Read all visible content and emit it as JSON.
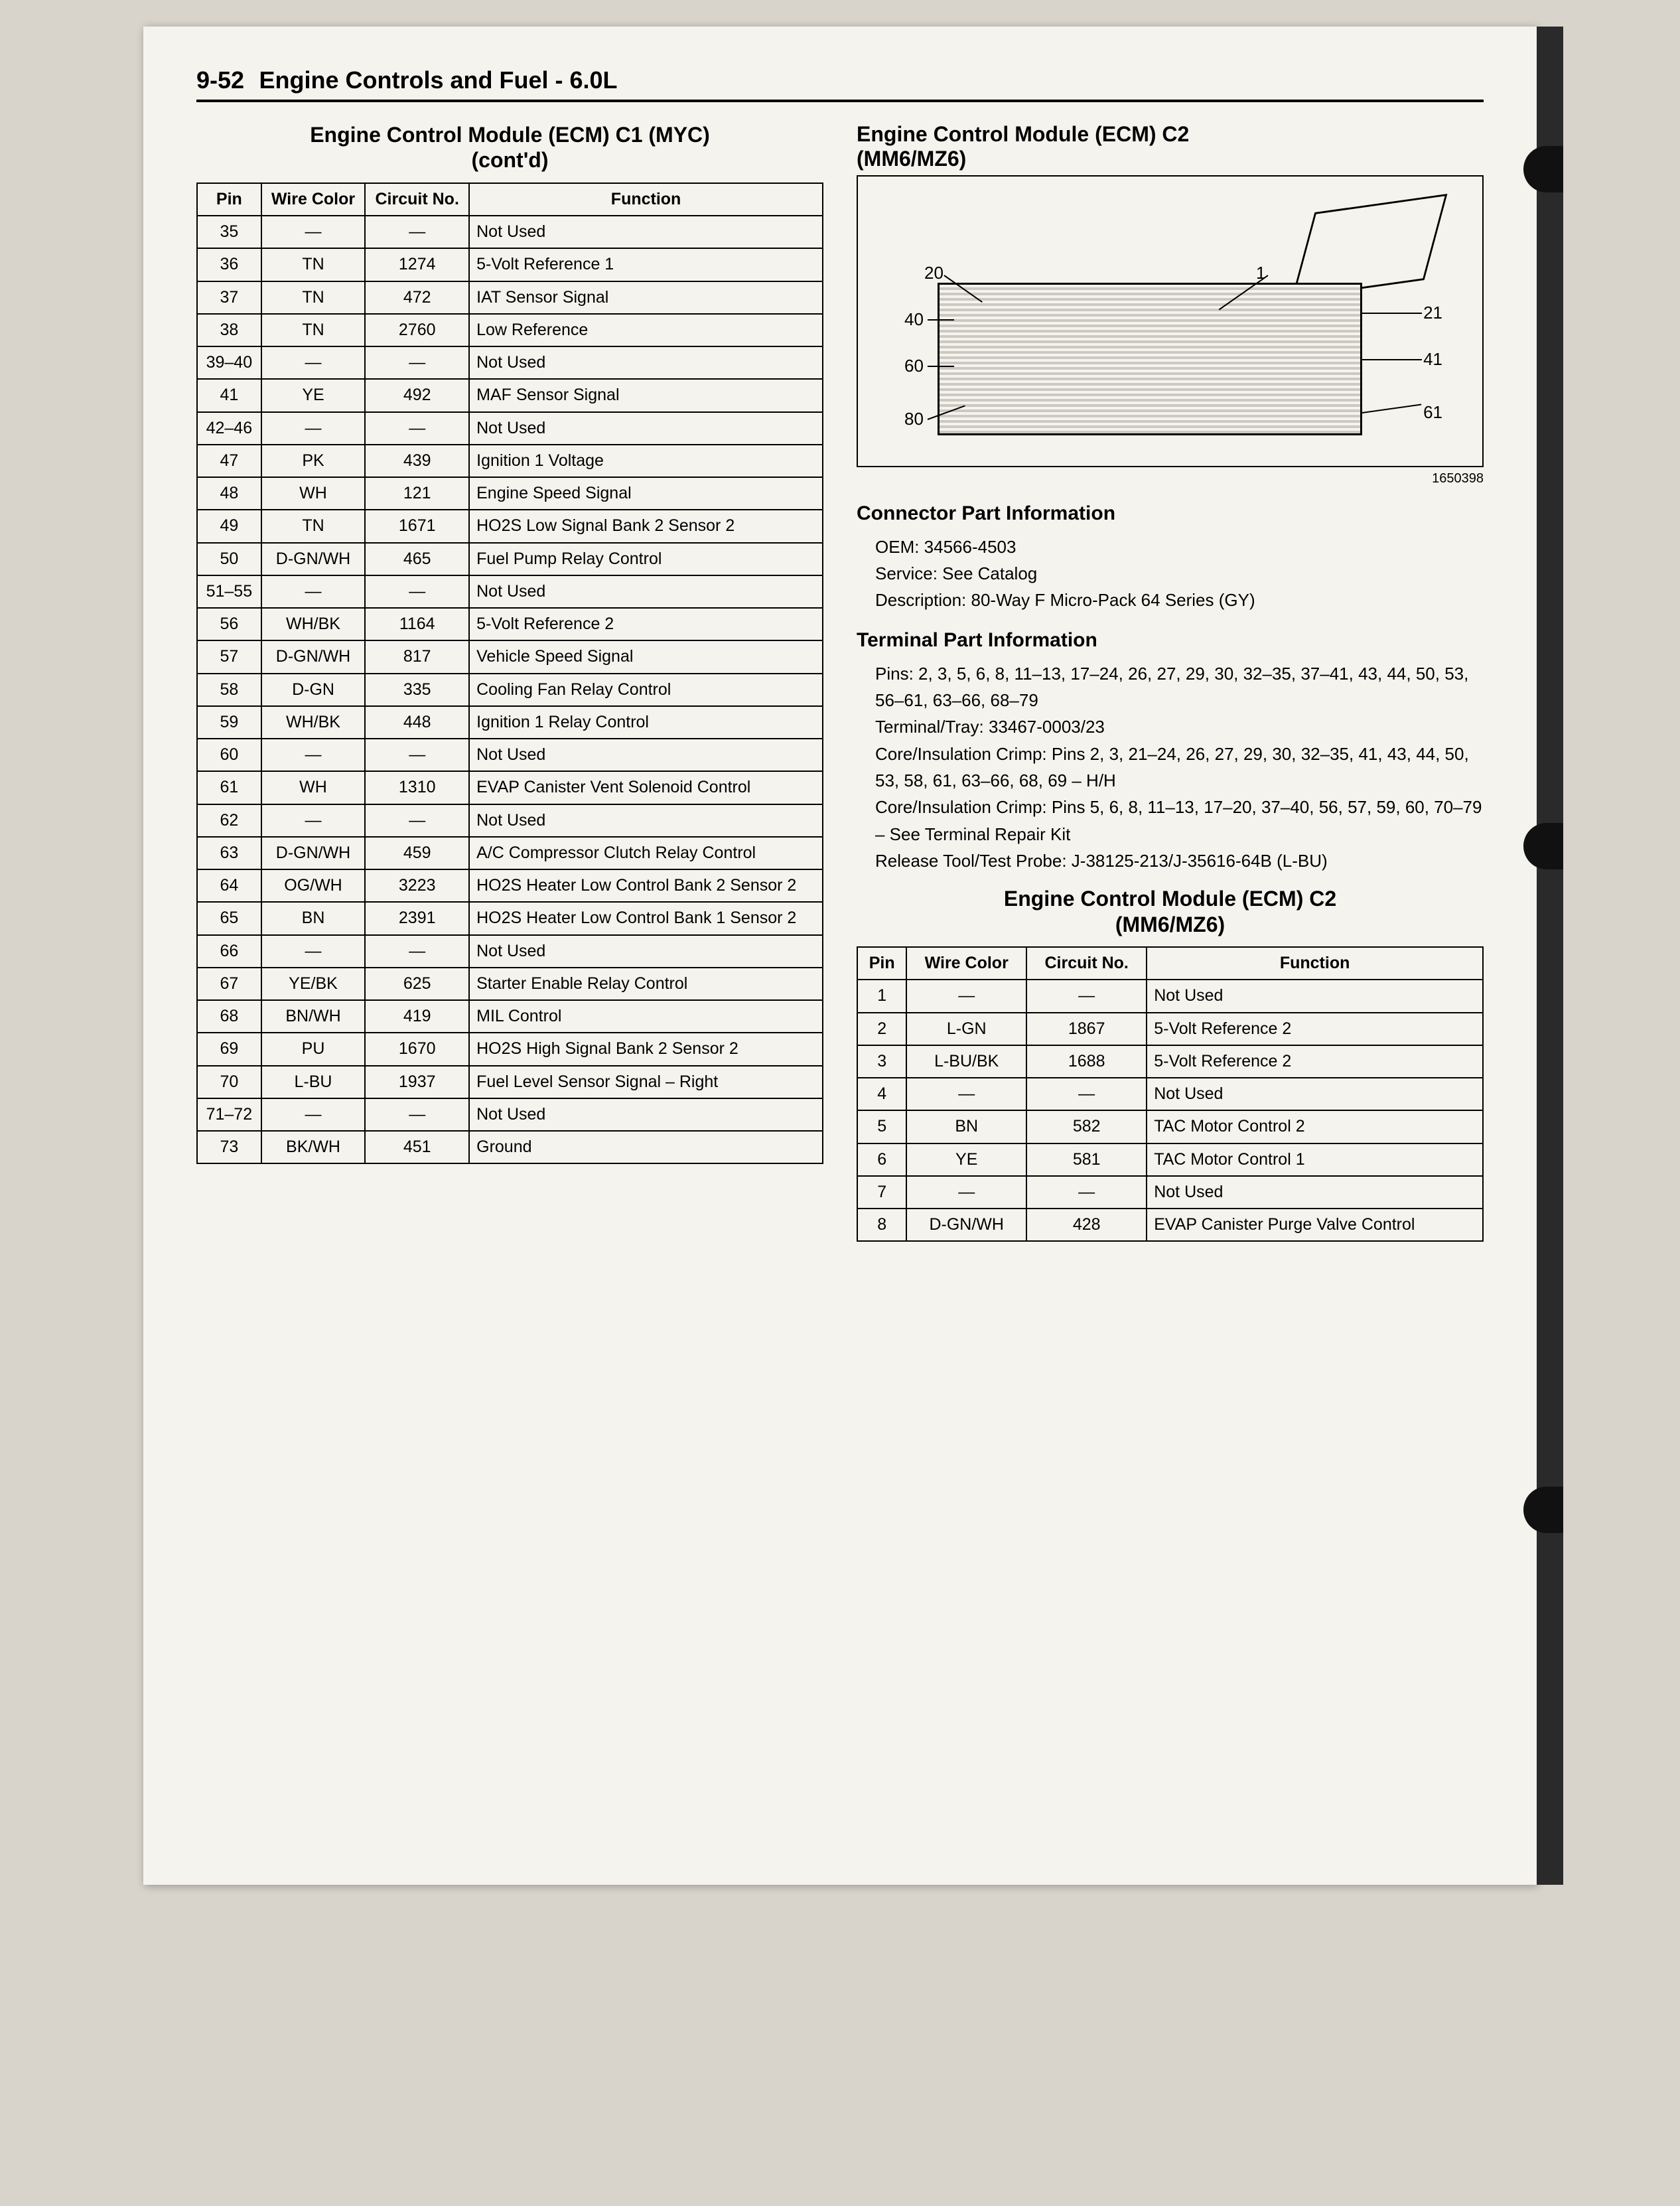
{
  "page": {
    "number": "9-52",
    "section": "Engine Controls and Fuel - 6.0L"
  },
  "left": {
    "title_line1": "Engine Control Module (ECM) C1 (MYC)",
    "title_line2": "(cont'd)",
    "headers": {
      "pin": "Pin",
      "wire": "Wire Color",
      "circuit": "Circuit No.",
      "func": "Function"
    },
    "rows": [
      {
        "pin": "35",
        "wire": "—",
        "circuit": "—",
        "func": "Not Used"
      },
      {
        "pin": "36",
        "wire": "TN",
        "circuit": "1274",
        "func": "5-Volt Reference 1"
      },
      {
        "pin": "37",
        "wire": "TN",
        "circuit": "472",
        "func": "IAT Sensor Signal"
      },
      {
        "pin": "38",
        "wire": "TN",
        "circuit": "2760",
        "func": "Low Reference"
      },
      {
        "pin": "39–40",
        "wire": "—",
        "circuit": "—",
        "func": "Not Used"
      },
      {
        "pin": "41",
        "wire": "YE",
        "circuit": "492",
        "func": "MAF Sensor Signal"
      },
      {
        "pin": "42–46",
        "wire": "—",
        "circuit": "—",
        "func": "Not Used"
      },
      {
        "pin": "47",
        "wire": "PK",
        "circuit": "439",
        "func": "Ignition 1 Voltage"
      },
      {
        "pin": "48",
        "wire": "WH",
        "circuit": "121",
        "func": "Engine Speed Signal"
      },
      {
        "pin": "49",
        "wire": "TN",
        "circuit": "1671",
        "func": "HO2S Low Signal Bank 2 Sensor 2"
      },
      {
        "pin": "50",
        "wire": "D-GN/WH",
        "circuit": "465",
        "func": "Fuel Pump Relay Control"
      },
      {
        "pin": "51–55",
        "wire": "—",
        "circuit": "—",
        "func": "Not Used"
      },
      {
        "pin": "56",
        "wire": "WH/BK",
        "circuit": "1164",
        "func": "5-Volt Reference 2"
      },
      {
        "pin": "57",
        "wire": "D-GN/WH",
        "circuit": "817",
        "func": "Vehicle Speed Signal"
      },
      {
        "pin": "58",
        "wire": "D-GN",
        "circuit": "335",
        "func": "Cooling Fan Relay Control"
      },
      {
        "pin": "59",
        "wire": "WH/BK",
        "circuit": "448",
        "func": "Ignition 1 Relay Control"
      },
      {
        "pin": "60",
        "wire": "—",
        "circuit": "—",
        "func": "Not Used"
      },
      {
        "pin": "61",
        "wire": "WH",
        "circuit": "1310",
        "func": "EVAP Canister Vent Solenoid Control"
      },
      {
        "pin": "62",
        "wire": "—",
        "circuit": "—",
        "func": "Not Used"
      },
      {
        "pin": "63",
        "wire": "D-GN/WH",
        "circuit": "459",
        "func": "A/C Compressor Clutch Relay Control"
      },
      {
        "pin": "64",
        "wire": "OG/WH",
        "circuit": "3223",
        "func": "HO2S Heater Low Control Bank 2 Sensor 2"
      },
      {
        "pin": "65",
        "wire": "BN",
        "circuit": "2391",
        "func": "HO2S Heater Low Control Bank 1 Sensor 2"
      },
      {
        "pin": "66",
        "wire": "—",
        "circuit": "—",
        "func": "Not Used"
      },
      {
        "pin": "67",
        "wire": "YE/BK",
        "circuit": "625",
        "func": "Starter Enable Relay Control"
      },
      {
        "pin": "68",
        "wire": "BN/WH",
        "circuit": "419",
        "func": "MIL Control"
      },
      {
        "pin": "69",
        "wire": "PU",
        "circuit": "1670",
        "func": "HO2S High Signal Bank 2 Sensor 2"
      },
      {
        "pin": "70",
        "wire": "L-BU",
        "circuit": "1937",
        "func": "Fuel Level Sensor Signal – Right"
      },
      {
        "pin": "71–72",
        "wire": "—",
        "circuit": "—",
        "func": "Not Used"
      },
      {
        "pin": "73",
        "wire": "BK/WH",
        "circuit": "451",
        "func": "Ground"
      }
    ]
  },
  "right": {
    "title_line1": "Engine Control Module (ECM) C2",
    "title_line2": "(MM6/MZ6)",
    "diagram": {
      "labels": {
        "tl": "20",
        "tr": "1",
        "ml": "40",
        "mr": "21",
        "bl": "60",
        "br": "41",
        "bbl": "80",
        "bbr": "61"
      },
      "figure_id": "1650398"
    },
    "conn_info": {
      "heading": "Connector Part Information",
      "oem": "OEM: 34566-4503",
      "service": "Service: See Catalog",
      "desc": "Description: 80-Way F Micro-Pack 64 Series (GY)"
    },
    "term_info": {
      "heading": "Terminal Part Information",
      "pins": "Pins: 2, 3, 5, 6, 8, 11–13, 17–24, 26, 27, 29, 30, 32–35, 37–41, 43, 44, 50, 53, 56–61, 63–66, 68–79",
      "tray": "Terminal/Tray: 33467-0003/23",
      "crimp1": "Core/Insulation Crimp: Pins 2, 3, 21–24, 26, 27, 29, 30, 32–35, 41, 43, 44, 50, 53, 58, 61, 63–66, 68, 69 – H/H",
      "crimp2": "Core/Insulation Crimp: Pins 5, 6, 8, 11–13, 17–20, 37–40, 56, 57, 59, 60, 70–79 – See Terminal Repair Kit",
      "release": "Release Tool/Test Probe: J-38125-213/J-35616-64B (L-BU)"
    },
    "table2": {
      "title_line1": "Engine Control Module (ECM) C2",
      "title_line2": "(MM6/MZ6)",
      "headers": {
        "pin": "Pin",
        "wire": "Wire Color",
        "circuit": "Circuit No.",
        "func": "Function"
      },
      "rows": [
        {
          "pin": "1",
          "wire": "—",
          "circuit": "—",
          "func": "Not Used"
        },
        {
          "pin": "2",
          "wire": "L-GN",
          "circuit": "1867",
          "func": "5-Volt Reference 2"
        },
        {
          "pin": "3",
          "wire": "L-BU/BK",
          "circuit": "1688",
          "func": "5-Volt Reference 2"
        },
        {
          "pin": "4",
          "wire": "—",
          "circuit": "—",
          "func": "Not Used"
        },
        {
          "pin": "5",
          "wire": "BN",
          "circuit": "582",
          "func": "TAC Motor Control 2"
        },
        {
          "pin": "6",
          "wire": "YE",
          "circuit": "581",
          "func": "TAC Motor Control 1"
        },
        {
          "pin": "7",
          "wire": "—",
          "circuit": "—",
          "func": "Not Used"
        },
        {
          "pin": "8",
          "wire": "D-GN/WH",
          "circuit": "428",
          "func": "EVAP Canister Purge Valve Control"
        }
      ]
    }
  },
  "style": {
    "border_color": "#000000",
    "background": "#f5f3ee",
    "font_size_body": 25,
    "font_size_heading": 32,
    "font_size_pageheader": 36
  }
}
